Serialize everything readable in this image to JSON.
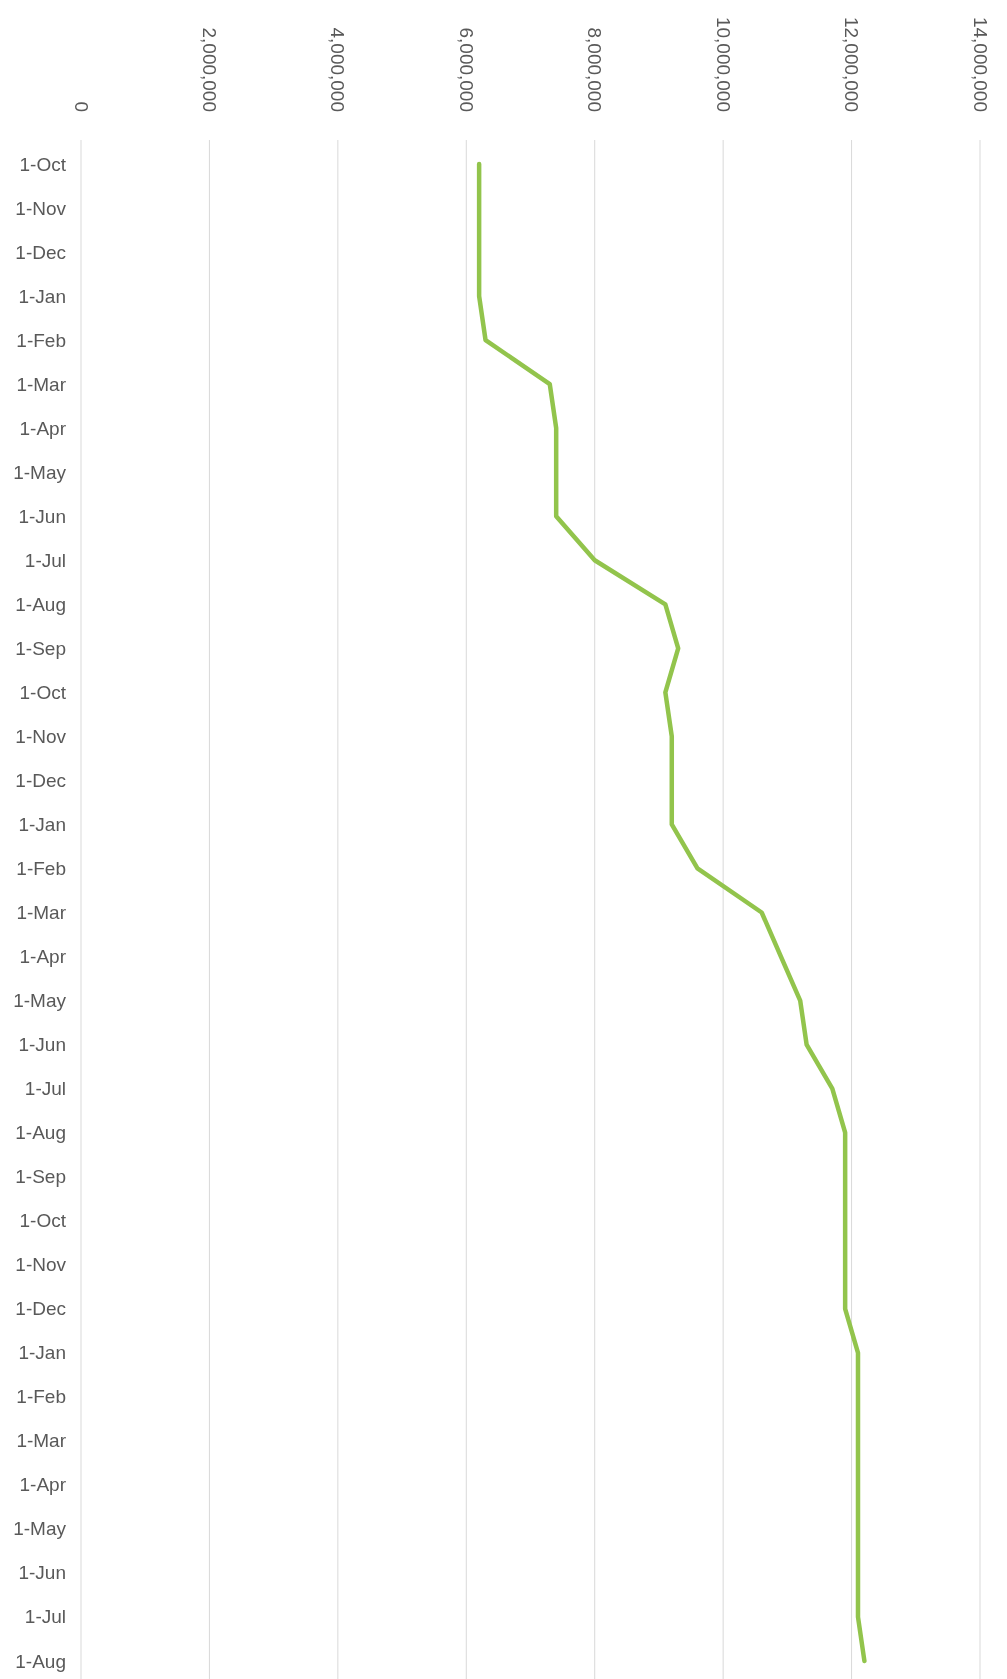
{
  "chart_data": {
    "type": "line",
    "orientation": "horizontal",
    "categories": [
      "1-Oct",
      "1-Nov",
      "1-Dec",
      "1-Jan",
      "1-Feb",
      "1-Mar",
      "1-Apr",
      "1-May",
      "1-Jun",
      "1-Jul",
      "1-Aug",
      "1-Sep",
      "1-Oct",
      "1-Nov",
      "1-Dec",
      "1-Jan",
      "1-Feb",
      "1-Mar",
      "1-Apr",
      "1-May",
      "1-Jun",
      "1-Jul",
      "1-Aug",
      "1-Sep",
      "1-Oct",
      "1-Nov",
      "1-Dec",
      "1-Jan",
      "1-Feb",
      "1-Mar",
      "1-Apr",
      "1-May",
      "1-Jun",
      "1-Jul",
      "1-Aug"
    ],
    "series": [
      {
        "color": "#92c44c",
        "values": [
          6200000,
          6200000,
          6200000,
          6200000,
          6300000,
          7300000,
          7400000,
          7400000,
          7400000,
          8000000,
          9100000,
          9300000,
          9100000,
          9200000,
          9200000,
          9200000,
          9600000,
          10600000,
          10900000,
          11200000,
          11300000,
          11700000,
          11900000,
          11900000,
          11900000,
          11900000,
          11900000,
          12100000,
          12100000,
          12100000,
          12100000,
          12100000,
          12100000,
          12100000,
          12200000
        ]
      }
    ],
    "xlim": [
      0,
      14000000
    ],
    "xticks": [
      {
        "value": 0,
        "label": "0"
      },
      {
        "value": 2000000,
        "label": "2,000,000"
      },
      {
        "value": 4000000,
        "label": "4,000,000"
      },
      {
        "value": 6000000,
        "label": "6,000,000"
      },
      {
        "value": 8000000,
        "label": "8,000,000"
      },
      {
        "value": 10000000,
        "label": "10,000,000"
      },
      {
        "value": 12000000,
        "label": "12,000,000"
      },
      {
        "value": 14000000,
        "label": "14,000,000"
      }
    ],
    "grid": "x",
    "marker": "none",
    "line_style": "solid"
  }
}
